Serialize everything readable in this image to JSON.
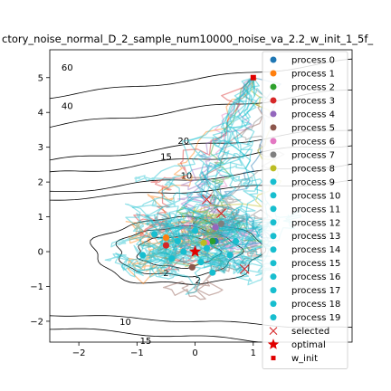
{
  "chart_data": {
    "type": "line",
    "title": "ctory_noise_normal_D_2_sample_num10000_noise_va_2.2_w_init_1_5f_",
    "xlim": [
      -2.5,
      2.7
    ],
    "ylim": [
      -2.6,
      5.8
    ],
    "xticks": [
      "−2",
      "−1",
      "0",
      "1"
    ],
    "yticks": [
      "−2",
      "−1",
      "0",
      "1",
      "2",
      "3",
      "4",
      "5"
    ],
    "contour_labels": [
      "60",
      "40",
      "20",
      "15",
      "10",
      "2",
      "2",
      "2",
      "10",
      "15"
    ],
    "legend": {
      "placement": "upper-right",
      "entries": [
        {
          "label": "process 0",
          "color": "#1f77b4",
          "marker": "circle"
        },
        {
          "label": "process 1",
          "color": "#ff7f0e",
          "marker": "circle"
        },
        {
          "label": "process 2",
          "color": "#2ca02c",
          "marker": "circle"
        },
        {
          "label": "process 3",
          "color": "#d62728",
          "marker": "circle"
        },
        {
          "label": "process 4",
          "color": "#9467bd",
          "marker": "circle"
        },
        {
          "label": "process 5",
          "color": "#8c564b",
          "marker": "circle"
        },
        {
          "label": "process 6",
          "color": "#e377c2",
          "marker": "circle"
        },
        {
          "label": "process 7",
          "color": "#7f7f7f",
          "marker": "circle"
        },
        {
          "label": "process 8",
          "color": "#bcbd22",
          "marker": "circle"
        },
        {
          "label": "process 9",
          "color": "#17becf",
          "marker": "circle"
        },
        {
          "label": "process 10",
          "color": "#17becf",
          "marker": "circle"
        },
        {
          "label": "process 11",
          "color": "#17becf",
          "marker": "circle"
        },
        {
          "label": "process 12",
          "color": "#17becf",
          "marker": "circle"
        },
        {
          "label": "process 13",
          "color": "#17becf",
          "marker": "circle"
        },
        {
          "label": "process 14",
          "color": "#17becf",
          "marker": "circle"
        },
        {
          "label": "process 15",
          "color": "#17becf",
          "marker": "circle"
        },
        {
          "label": "process 16",
          "color": "#17becf",
          "marker": "circle"
        },
        {
          "label": "process 17",
          "color": "#17becf",
          "marker": "circle"
        },
        {
          "label": "process 18",
          "color": "#17becf",
          "marker": "circle"
        },
        {
          "label": "process 19",
          "color": "#17becf",
          "marker": "circle"
        },
        {
          "label": "selected",
          "color": "#d62728",
          "marker": "x"
        },
        {
          "label": "optimal",
          "color": "#e00000",
          "marker": "star"
        },
        {
          "label": "w_init",
          "color": "#e00000",
          "marker": "square"
        }
      ]
    },
    "w_init": [
      1.0,
      5.0
    ],
    "optimal": [
      0.0,
      0.0
    ],
    "selected": [
      [
        0.85,
        -0.5
      ],
      [
        0.45,
        1.1
      ],
      [
        0.2,
        1.5
      ]
    ],
    "process_end_points": [
      {
        "process": 0,
        "x": 0.35,
        "y": 0.3
      },
      {
        "process": 1,
        "x": -0.5,
        "y": 0.4
      },
      {
        "process": 2,
        "x": 0.3,
        "y": 0.3
      },
      {
        "process": 3,
        "x": -0.5,
        "y": 0.18
      },
      {
        "process": 4,
        "x": 0.35,
        "y": 0.7
      },
      {
        "process": 5,
        "x": -0.05,
        "y": -0.45
      },
      {
        "process": 6,
        "x": 0.2,
        "y": 0.25
      },
      {
        "process": 7,
        "x": 0.45,
        "y": 0.8
      },
      {
        "process": 8,
        "x": 0.15,
        "y": 0.25
      },
      {
        "process": 9,
        "x": 0.2,
        "y": 0.1
      },
      {
        "process": 10,
        "x": -0.2,
        "y": 0.0
      },
      {
        "process": 11,
        "x": 0.1,
        "y": -0.3
      },
      {
        "process": 12,
        "x": -0.4,
        "y": -0.2
      },
      {
        "process": 13,
        "x": 0.6,
        "y": -0.1
      },
      {
        "process": 14,
        "x": -0.7,
        "y": 0.5
      },
      {
        "process": 15,
        "x": 0.0,
        "y": 0.6
      },
      {
        "process": 16,
        "x": 0.7,
        "y": 0.3
      },
      {
        "process": 17,
        "x": -0.9,
        "y": -0.1
      },
      {
        "process": 18,
        "x": 0.3,
        "y": -0.6
      },
      {
        "process": 19,
        "x": -0.3,
        "y": 0.3
      }
    ]
  }
}
